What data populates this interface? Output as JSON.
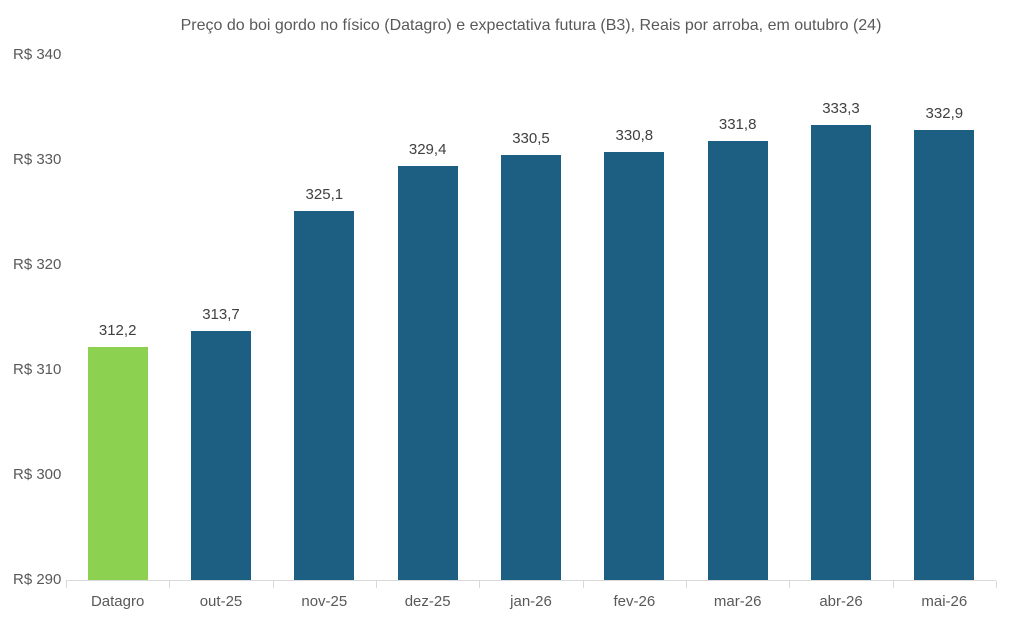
{
  "title": "Preço do boi gordo no físico (Datagro)  e expectativa futura (B3), Reais por arroba, em outubro (24)",
  "chart_data": {
    "type": "bar",
    "title": "Preço do boi gordo no físico (Datagro)  e expectativa futura (B3), Reais por arroba, em outubro (24)",
    "categories": [
      "Datagro",
      "out-25",
      "nov-25",
      "dez-25",
      "jan-26",
      "fev-26",
      "mar-26",
      "abr-26",
      "mai-26"
    ],
    "values": [
      312.2,
      313.7,
      325.1,
      329.4,
      330.5,
      330.8,
      331.8,
      333.3,
      332.9
    ],
    "value_labels": [
      "312,2",
      "313,7",
      "325,1",
      "329,4",
      "330,5",
      "330,8",
      "331,8",
      "333,3",
      "332,9"
    ],
    "xlabel": "",
    "ylabel": "",
    "ylim": [
      290,
      340
    ],
    "y_ticks": [
      290,
      300,
      310,
      320,
      330,
      340
    ],
    "y_tick_labels": [
      "R$ 290",
      "R$ 300",
      "R$ 310",
      "R$ 320",
      "R$ 330",
      "R$ 340"
    ],
    "grid": false,
    "legend": null,
    "highlight_index": 0,
    "colors": {
      "highlight_bar": "#8CD14F",
      "default_bar": "#1D5F82",
      "axis_line": "#d9d9d9",
      "axis_text": "#595959",
      "value_label_text": "#404040",
      "title_text": "#595959"
    }
  }
}
